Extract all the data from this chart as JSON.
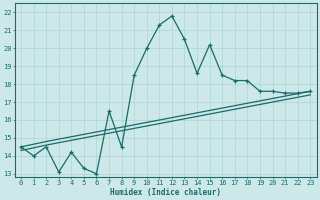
{
  "xlabel": "Humidex (Indice chaleur)",
  "bg_color": "#cce8e8",
  "grid_color": "#b0d8d8",
  "line_color": "#1a6b6b",
  "xlim": [
    -0.5,
    23.5
  ],
  "ylim": [
    12.8,
    22.5
  ],
  "yticks": [
    13,
    14,
    15,
    16,
    17,
    18,
    19,
    20,
    21,
    22
  ],
  "xticks": [
    0,
    1,
    2,
    3,
    4,
    5,
    6,
    7,
    8,
    9,
    10,
    11,
    12,
    13,
    14,
    15,
    16,
    17,
    18,
    19,
    20,
    21,
    22,
    23
  ],
  "series1_x": [
    0,
    1,
    2,
    3,
    4,
    5,
    6,
    7,
    8,
    9,
    10,
    11,
    12,
    13,
    14,
    15,
    16,
    17,
    18,
    19,
    20,
    21,
    22,
    23
  ],
  "series1_y": [
    14.5,
    14.0,
    14.5,
    13.1,
    14.2,
    13.3,
    13.0,
    16.5,
    14.5,
    18.5,
    20.0,
    21.3,
    21.8,
    20.5,
    18.6,
    20.2,
    18.5,
    18.2,
    18.2,
    17.6,
    17.6,
    17.5,
    17.5,
    17.6
  ],
  "series2_x": [
    0,
    2,
    23
  ],
  "series2_y": [
    14.5,
    14.8,
    17.6
  ],
  "series3_x": [
    0,
    2,
    23
  ],
  "series3_y": [
    14.3,
    14.6,
    17.4
  ]
}
